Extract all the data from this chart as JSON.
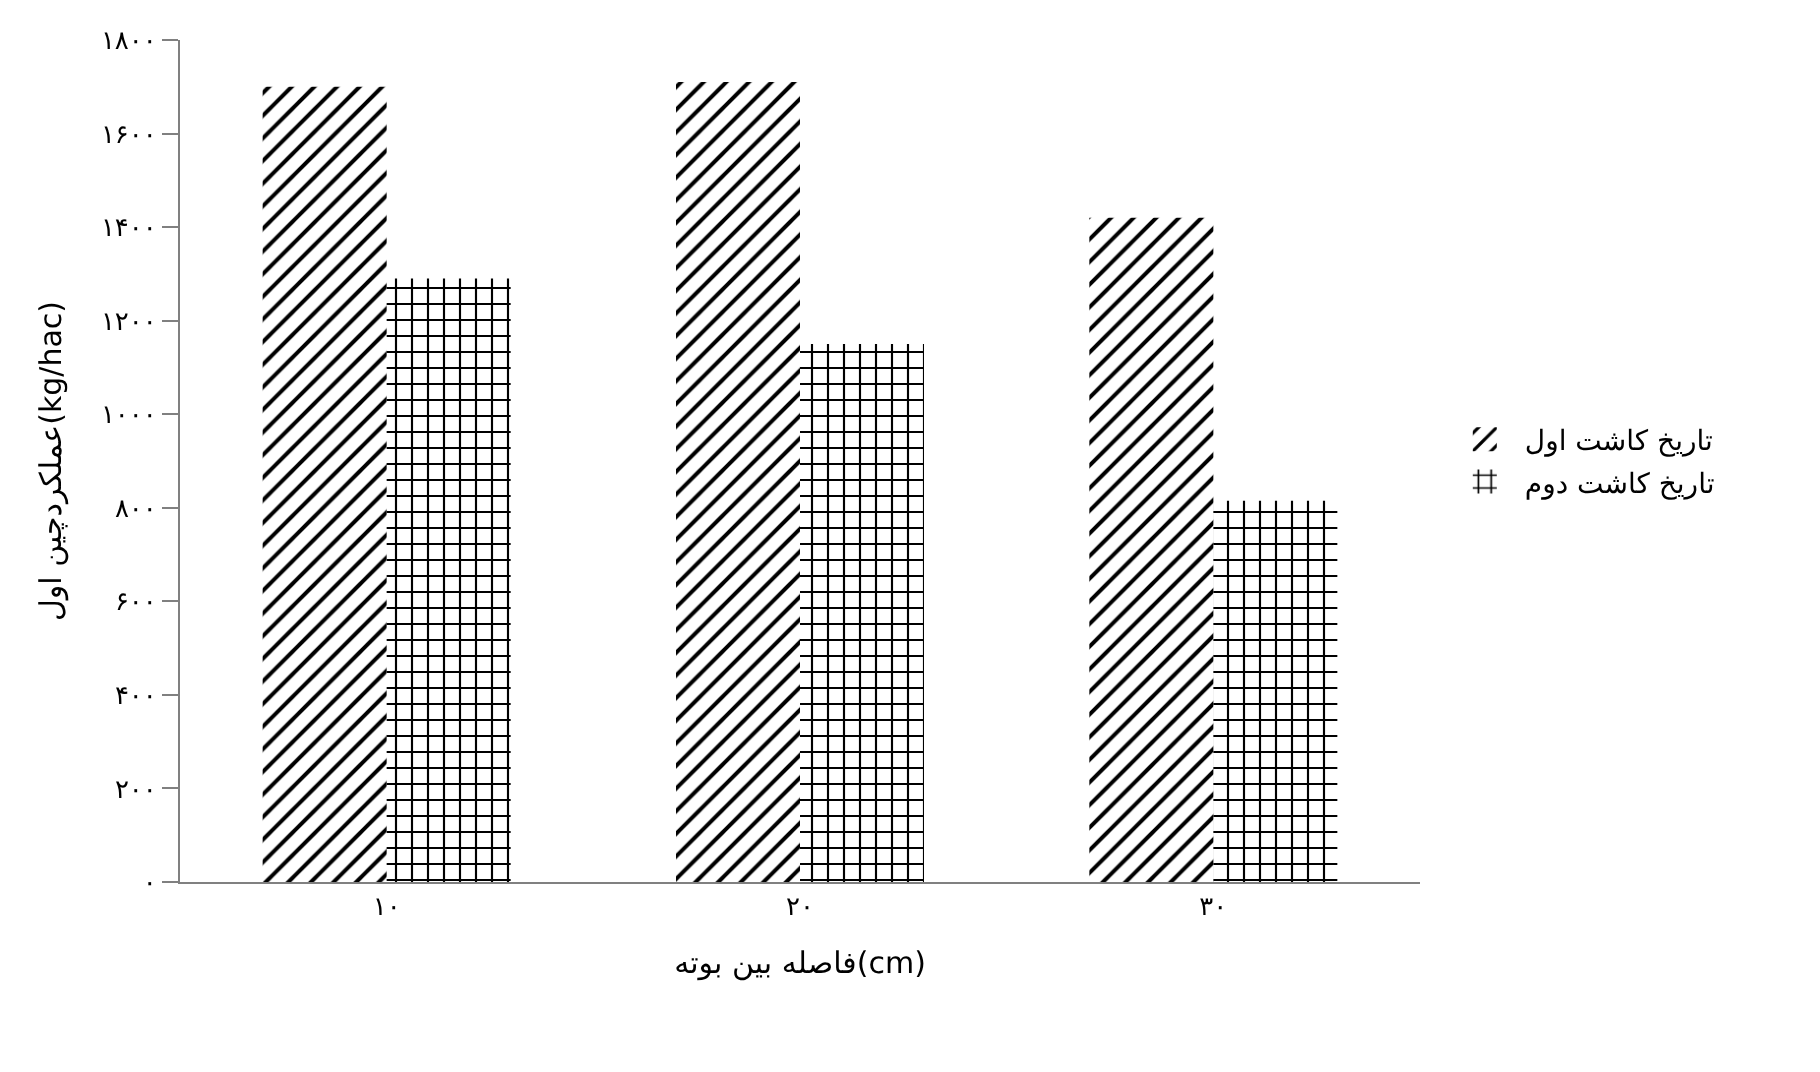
{
  "chart_data": {
    "type": "bar",
    "xlabel": "فاصله بین بوته(cm)",
    "ylabel": "عملکردچین اول(kg/hac)",
    "categories": [
      "۱۰",
      "۲۰",
      "۳۰"
    ],
    "series": [
      {
        "name": "تاریخ کاشت اول",
        "color": "#000000",
        "values": [
          1700,
          1710,
          1420
        ]
      },
      {
        "name": "تاریخ کاشت دوم",
        "color": "#000000",
        "values": [
          1290,
          1150,
          815
        ]
      }
    ],
    "ylim": [
      0,
      1800
    ],
    "yticks": [
      {
        "value": 0,
        "label": "۰"
      },
      {
        "value": 200,
        "label": "۲۰۰"
      },
      {
        "value": 400,
        "label": "۴۰۰"
      },
      {
        "value": 600,
        "label": "۶۰۰"
      },
      {
        "value": 800,
        "label": "۸۰۰"
      },
      {
        "value": 1000,
        "label": "۱۰۰۰"
      },
      {
        "value": 1200,
        "label": "۱۲۰۰"
      },
      {
        "value": 1400,
        "label": "۱۴۰۰"
      },
      {
        "value": 1600,
        "label": "۱۶۰۰"
      },
      {
        "value": 1800,
        "label": "۱۸۰۰"
      }
    ],
    "legend": "right"
  }
}
